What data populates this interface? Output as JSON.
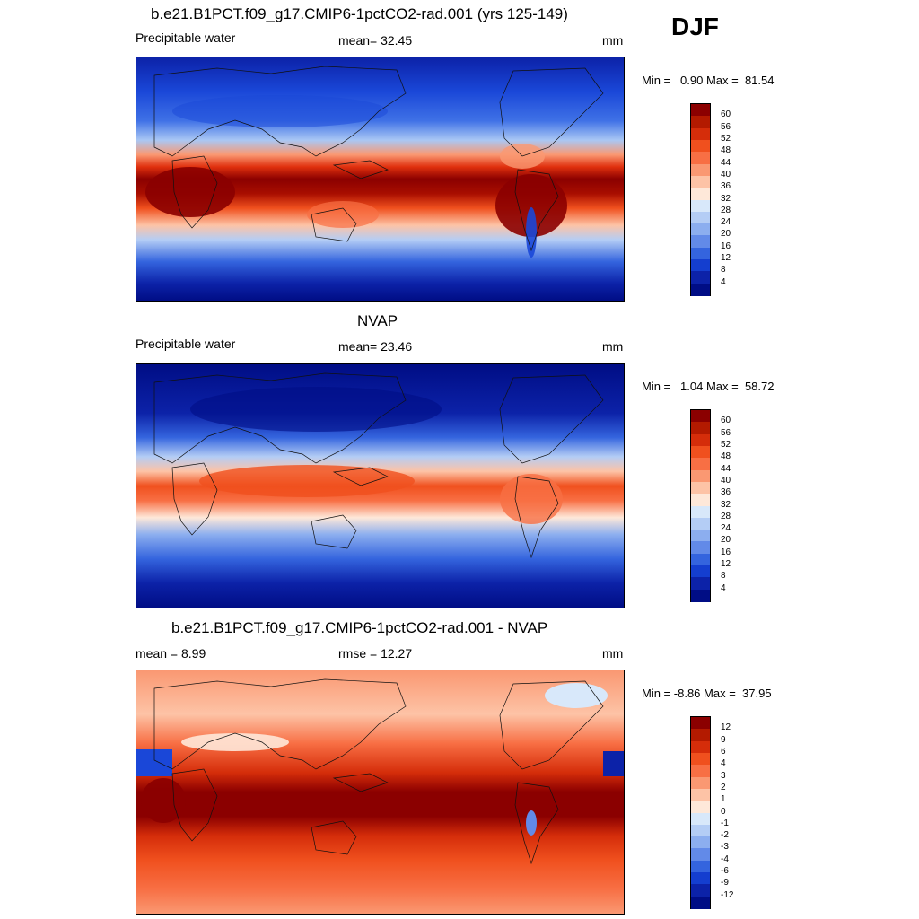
{
  "season": "DJF",
  "panels": [
    {
      "title": "b.e21.B1PCT.f09_g17.CMIP6-1pctCO2-rad.001 (yrs 125-149)",
      "left_label": "Precipitable water",
      "center_label": "mean=  32.45",
      "right_label": "mm",
      "min_label": "Min =",
      "min_value": "0.90",
      "max_label": "Max =",
      "max_value": "81.54",
      "colorbar": {
        "ticks": [
          "60",
          "56",
          "52",
          "48",
          "44",
          "40",
          "36",
          "32",
          "28",
          "24",
          "20",
          "16",
          "12",
          "8",
          "4"
        ],
        "colors": [
          "#8b0000",
          "#b31a00",
          "#d52d0a",
          "#f0501e",
          "#f86f44",
          "#fa9872",
          "#fdc3a6",
          "#fee8d9",
          "#d8e8fa",
          "#b4cdf5",
          "#8caeef",
          "#628ae8",
          "#3464de",
          "#143ecf",
          "#0c22a8",
          "#000d85"
        ]
      }
    },
    {
      "title": "NVAP",
      "left_label": "Precipitable water",
      "center_label": "mean=  23.46",
      "right_label": "mm",
      "min_label": "Min =",
      "min_value": "1.04",
      "max_label": "Max =",
      "max_value": "58.72",
      "colorbar": {
        "ticks": [
          "60",
          "56",
          "52",
          "48",
          "44",
          "40",
          "36",
          "32",
          "28",
          "24",
          "20",
          "16",
          "12",
          "8",
          "4"
        ],
        "colors": [
          "#8b0000",
          "#b31a00",
          "#d52d0a",
          "#f0501e",
          "#f86f44",
          "#fa9872",
          "#fdc3a6",
          "#fee8d9",
          "#d8e8fa",
          "#b4cdf5",
          "#8caeef",
          "#628ae8",
          "#3464de",
          "#143ecf",
          "#0c22a8",
          "#000d85"
        ]
      }
    },
    {
      "title": "b.e21.B1PCT.f09_g17.CMIP6-1pctCO2-rad.001 - NVAP",
      "left_label": "mean =   8.99",
      "center_label": "rmse =  12.27",
      "right_label": "mm",
      "min_label": "Min =",
      "min_value": "-8.86",
      "max_label": "Max =",
      "max_value": "37.95",
      "colorbar": {
        "ticks": [
          "12",
          "9",
          "6",
          "4",
          "3",
          "2",
          "1",
          "0",
          "-1",
          "-2",
          "-3",
          "-4",
          "-6",
          "-9",
          "-12"
        ],
        "colors": [
          "#8b0000",
          "#b31a00",
          "#d52d0a",
          "#f0501e",
          "#f86f44",
          "#fa9872",
          "#fdc3a6",
          "#fee8d9",
          "#d8e8fa",
          "#b4cdf5",
          "#8caeef",
          "#628ae8",
          "#3464de",
          "#143ecf",
          "#0c22a8",
          "#000d85"
        ]
      }
    }
  ]
}
